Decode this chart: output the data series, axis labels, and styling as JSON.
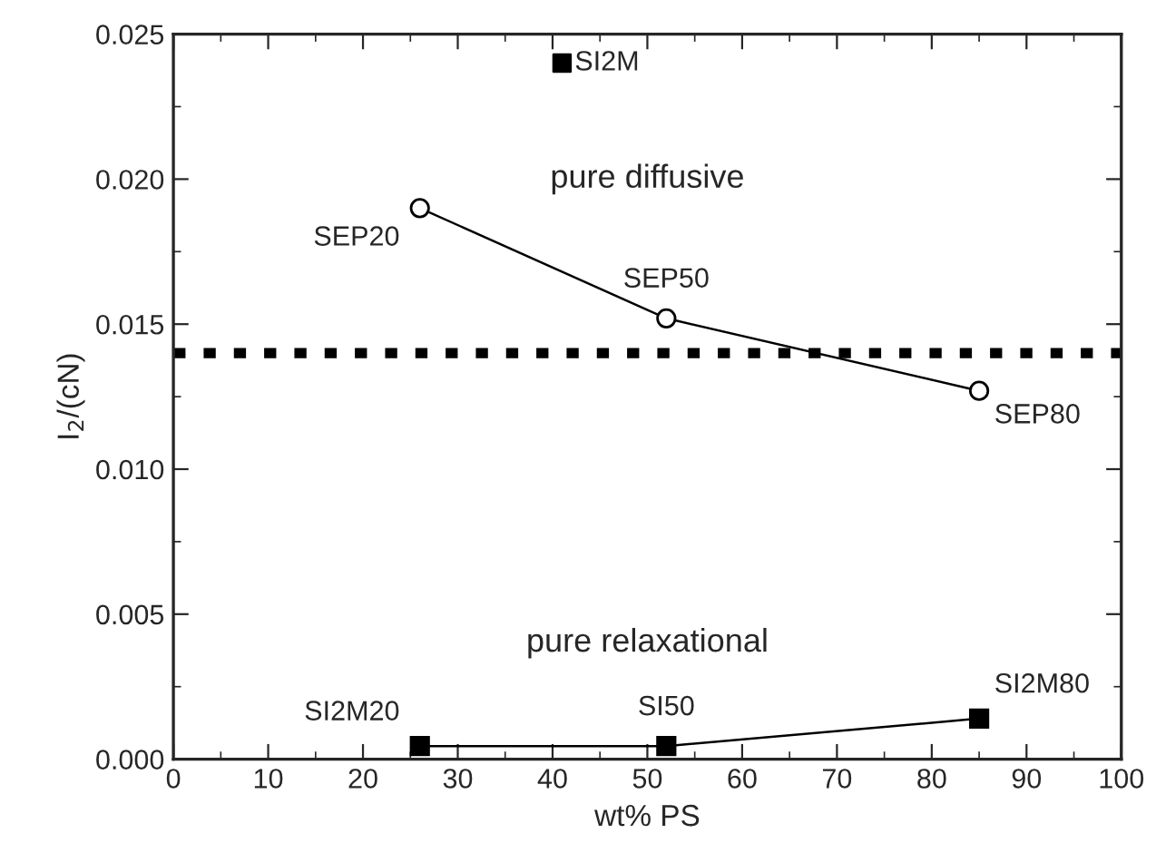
{
  "chart_data": {
    "type": "line",
    "xlabel": "wt% PS",
    "ylabel": "I$_{2}$/(cN)",
    "x": [
      26,
      52,
      85
    ],
    "series": [
      {
        "color": "#000000",
        "marker": "circle",
        "values": [
          0.019,
          0.0152,
          0.0127
        ]
      },
      {
        "color": "#000000",
        "marker": "square",
        "values": [
          0.00045,
          0.00045,
          0.0014
        ]
      },
      {
        "type": "scatter",
        "color": "#000000",
        "marker": "square",
        "x": [
          41
        ],
        "values": [
          0.024
        ]
      }
    ],
    "xlim": [
      0,
      100
    ],
    "xticks": [
      0,
      10,
      20,
      30,
      40,
      50,
      60,
      70,
      80,
      90,
      100
    ],
    "ylim": [
      0,
      0.025
    ],
    "yticks": [
      {
        "value": 0,
        "label": "0.000"
      },
      {
        "value": 0.005,
        "label": "0.005"
      },
      {
        "value": 0.01,
        "label": "0.010"
      },
      {
        "value": 0.015,
        "label": "0.015"
      },
      {
        "value": 0.02,
        "label": "0.020"
      },
      {
        "value": 0.025,
        "label": "0.025"
      }
    ],
    "ref_lines": [
      {
        "axis": "y",
        "value": 0.014,
        "color": "#000000",
        "line_style": "dotted"
      }
    ],
    "annotations": [
      {
        "text": "SEP20",
        "x": 26,
        "y": 0.019
      },
      {
        "text": "SEP50",
        "x": 52,
        "y": 0.0152
      },
      {
        "text": "SEP80",
        "x": 85,
        "y": 0.0127
      },
      {
        "text": "SI2M20",
        "x": 26,
        "y": 0.00045
      },
      {
        "text": "SI50",
        "x": 52,
        "y": 0.00045
      },
      {
        "text": "SI2M80",
        "x": 85,
        "y": 0.0014
      },
      {
        "text": "SI2M",
        "x": 41,
        "y": 0.024
      },
      "pure diffusive",
      "pure relaxational"
    ],
    "grid": false,
    "legend": false
  }
}
